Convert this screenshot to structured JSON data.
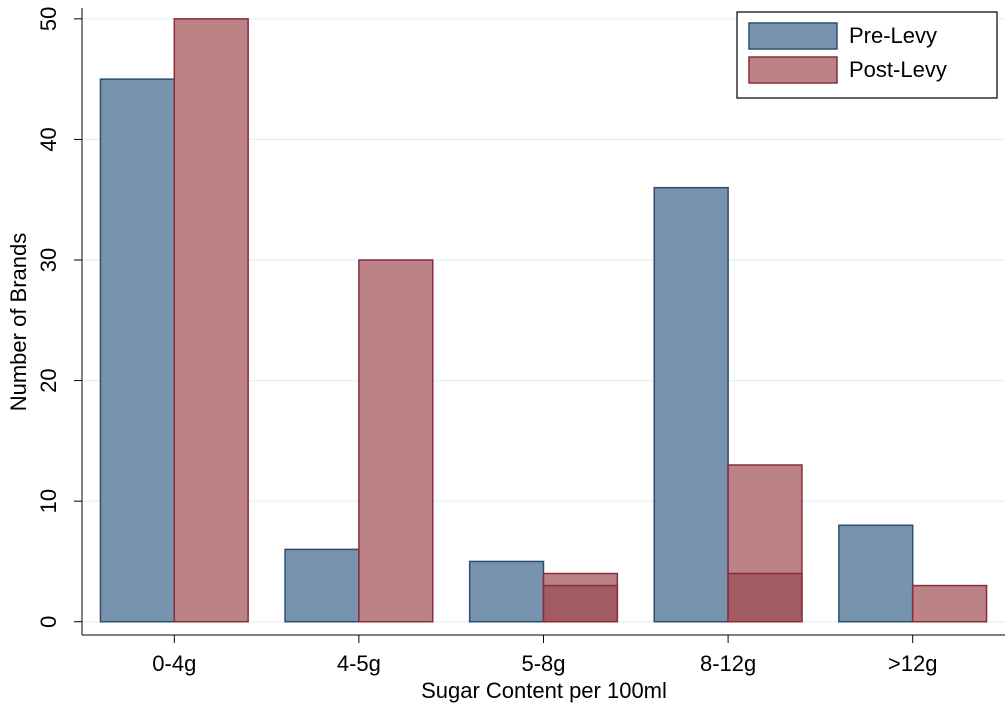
{
  "chart_data": {
    "type": "bar",
    "x_label": "Sugar Content per 100ml",
    "y_label": "Number of Brands",
    "categories": [
      "0-4g",
      "4-5g",
      "5-8g",
      "8-12g",
      ">12g"
    ],
    "series": [
      {
        "name": "Pre-Levy",
        "color": "#7793ad",
        "edge": "#2e4d6f",
        "values": [
          45,
          6,
          5,
          36,
          8
        ]
      },
      {
        "name": "Post-Levy",
        "color": "#bb8386",
        "edge": "#8b2c3c",
        "values": [
          50,
          30,
          4,
          13,
          3
        ]
      },
      {
        "color": "#a35b63",
        "edge": "#8b2c3c",
        "values": [
          null,
          null,
          3,
          4,
          null
        ]
      }
    ],
    "ylim": [
      -1.1,
      50.9
    ],
    "yticks": [
      0,
      10,
      20,
      30,
      40,
      50
    ],
    "grid": true,
    "legend": "top-right"
  }
}
